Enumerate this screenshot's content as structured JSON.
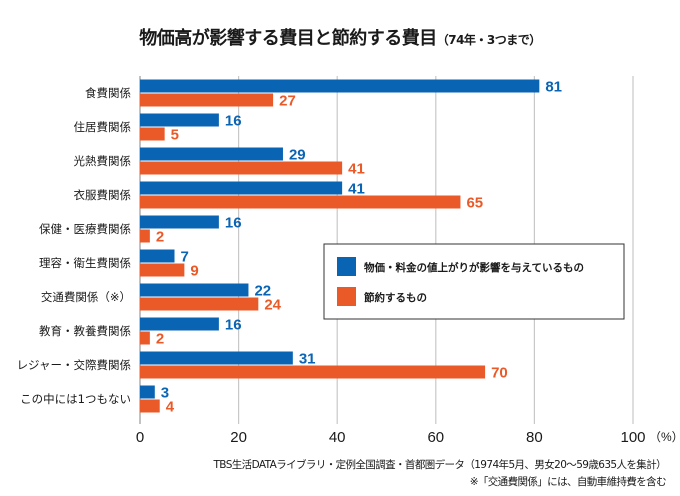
{
  "title": "物価高が影響する費目と節約する費目",
  "subtitle": "（74年・3つまで）",
  "source": "TBS生活DATAライブラリ・定例全国調査・首都圏データ（1974年5月、男女20〜59歳635人を集計）",
  "note": "※「交通費関係」には、自動車維持費を含む",
  "colors": {
    "affected": "#0a64b4",
    "saving": "#ea5a28",
    "grid": "#c8c8c8",
    "axis": "#999999"
  },
  "chart_data": {
    "type": "bar",
    "orientation": "horizontal",
    "title": "物価高が影響する費目と節約する費目（74年・3つまで）",
    "xlabel": "(%)",
    "ylabel": "",
    "xlim": [
      0,
      100
    ],
    "xticks": [
      0,
      20,
      40,
      60,
      80,
      100
    ],
    "xtick_labels": [
      "0",
      "20",
      "40",
      "60",
      "80",
      "100"
    ],
    "x_unit_label": "（%）",
    "grid": true,
    "legend_position": "center-right",
    "categories": [
      "食費関係",
      "住居費関係",
      "光熱費関係",
      "衣服費関係",
      "保健・医療費関係",
      "理容・衛生費関係",
      "交通費関係（※）",
      "教育・教養費関係",
      "レジャー・交際費関係",
      "この中には1つもない"
    ],
    "series": [
      {
        "name": "物価・料金の値上がりが影響を与えているもの",
        "color": "#0a64b4",
        "values": [
          81,
          16,
          29,
          41,
          16,
          7,
          22,
          16,
          31,
          3
        ]
      },
      {
        "name": "節約するもの",
        "color": "#ea5a28",
        "values": [
          27,
          5,
          41,
          65,
          2,
          9,
          24,
          2,
          70,
          4
        ]
      }
    ]
  }
}
